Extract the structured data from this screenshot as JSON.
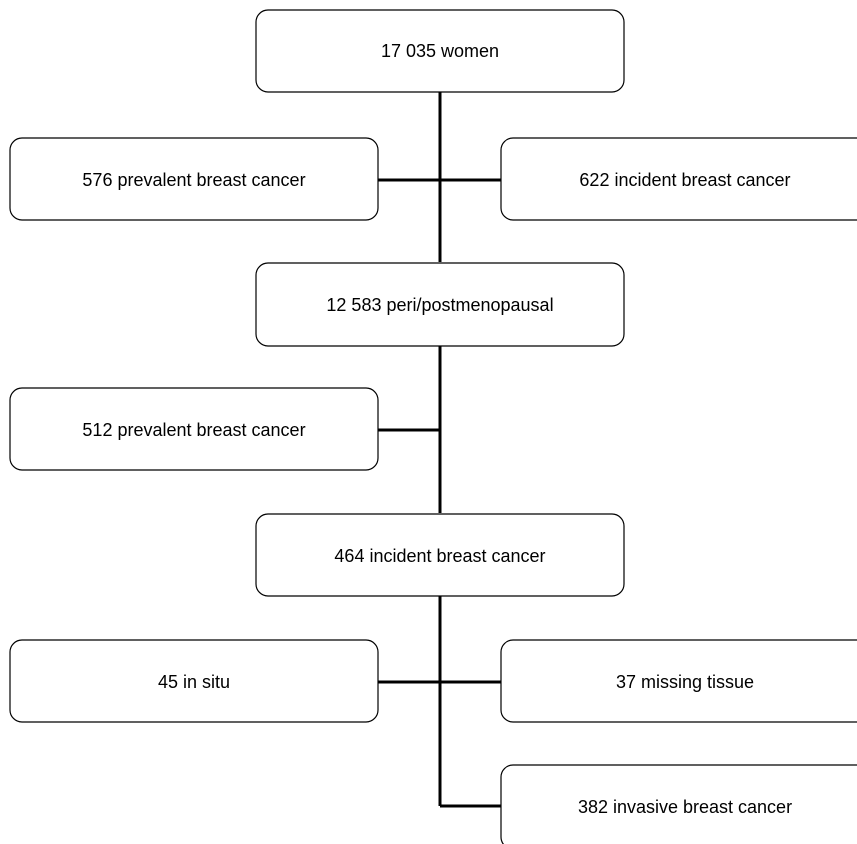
{
  "nodes": [
    {
      "id": "total",
      "label": "17 035 women"
    },
    {
      "id": "prev1",
      "label": "576 prevalent breast cancer"
    },
    {
      "id": "inc1",
      "label": "622 incident breast cancer"
    },
    {
      "id": "peri",
      "label": "12 583 peri/postmenopausal"
    },
    {
      "id": "prev2",
      "label": "512 prevalent breast cancer"
    },
    {
      "id": "inc2",
      "label": "464 incident breast cancer"
    },
    {
      "id": "insitu",
      "label": "45 in situ"
    },
    {
      "id": "missing",
      "label": "37 missing tissue"
    },
    {
      "id": "invasive",
      "label": "382 invasive breast cancer"
    }
  ],
  "edges": [
    {
      "from": "total",
      "to": "peri"
    },
    {
      "from": "total",
      "to": "prev1"
    },
    {
      "from": "total",
      "to": "inc1"
    },
    {
      "from": "peri",
      "to": "inc2"
    },
    {
      "from": "peri",
      "to": "prev2"
    },
    {
      "from": "inc2",
      "to": "insitu"
    },
    {
      "from": "inc2",
      "to": "missing"
    },
    {
      "from": "inc2",
      "to": "invasive"
    }
  ],
  "colors": {
    "line": "#000000",
    "box_fill": "#ffffff",
    "text": "#000000"
  }
}
